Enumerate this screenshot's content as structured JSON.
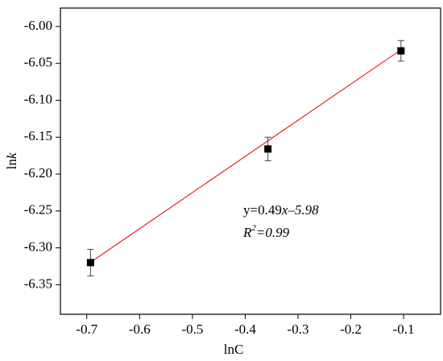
{
  "chart_data": {
    "type": "scatter",
    "x_label": "lnC",
    "y_label": [
      "ln",
      "k"
    ],
    "series": [
      {
        "x": [
          -0.693,
          -0.357,
          -0.105
        ],
        "values": [
          -6.32,
          -6.166,
          -6.033
        ],
        "errors": [
          0.018,
          0.016,
          0.014
        ],
        "color": "#000000"
      }
    ],
    "fit": {
      "x": [
        -0.693,
        -0.105
      ],
      "values": [
        -6.3196,
        -6.0315
      ],
      "color": "#e00000"
    },
    "annotations": [
      [
        "y=0.49",
        "x–5.98"
      ],
      [
        "R",
        "2",
        "=0.99"
      ]
    ],
    "xlim": [
      -0.75,
      -0.03
    ],
    "ylim": [
      -6.39,
      -5.975
    ],
    "xticks": [
      -0.7,
      -0.6,
      -0.5,
      -0.4,
      -0.3,
      -0.2,
      -0.1
    ],
    "yticks": [
      {
        "value": -6.0,
        "label": "-6.00"
      },
      -6.05,
      {
        "value": -6.1,
        "label": "-6.10"
      },
      -6.15,
      {
        "value": -6.2,
        "label": "-6.20"
      },
      -6.25,
      {
        "value": -6.3,
        "label": "-6.30"
      },
      -6.35
    ]
  }
}
